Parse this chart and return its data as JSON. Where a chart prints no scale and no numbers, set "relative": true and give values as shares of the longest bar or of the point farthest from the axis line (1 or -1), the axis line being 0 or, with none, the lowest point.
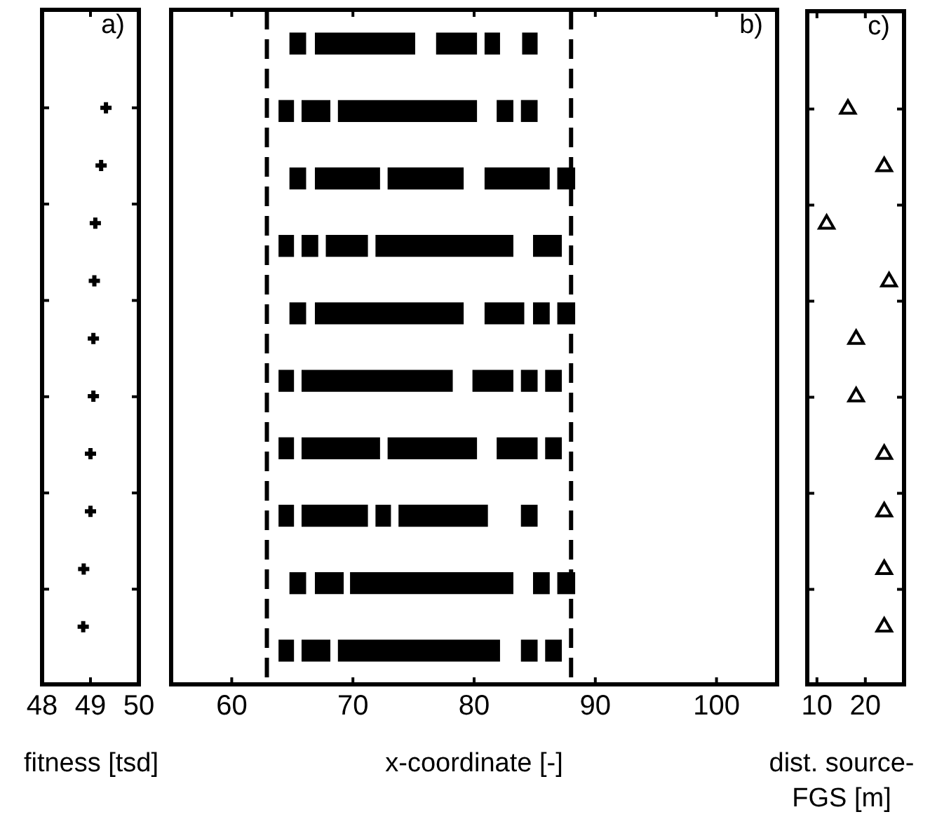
{
  "chart_data": [
    {
      "type": "scatter",
      "xlabel": "fitness [tsd]",
      "annotations": [
        "a)"
      ],
      "x": [
        49.32,
        49.22,
        49.1,
        49.08,
        49.06,
        49.06,
        49.0,
        49.0,
        48.86,
        48.85
      ],
      "values": [
        1,
        0.9,
        0.8,
        0.7,
        0.6,
        0.5,
        0.4,
        0.3,
        0.2,
        0.1
      ],
      "relative": true,
      "color": "#000000",
      "marker": "cross",
      "xlim": [
        48,
        50
      ],
      "xticks": [
        48,
        49,
        50
      ],
      "grid": false,
      "legend": false
    },
    {
      "type": "bar",
      "orientation": "horizontal",
      "xlabel": "x-coordinate [-]",
      "annotations": [
        "b)"
      ],
      "categories": [
        null,
        null,
        null,
        null,
        null,
        null,
        null,
        null,
        null,
        null
      ],
      "series": [
        {
          "color": "#000000",
          "base": [
            64.8,
            63.9,
            64.8,
            63.9,
            64.8,
            63.9,
            63.9,
            63.9,
            64.8,
            63.9
          ],
          "values": [
            1.3,
            1.2,
            1.3,
            1.2,
            1.3,
            1.2,
            1.2,
            1.2,
            1.3,
            1.2
          ]
        },
        {
          "color": "#000000",
          "base": [
            66.9,
            65.8,
            66.9,
            65.8,
            66.9,
            65.8,
            65.8,
            65.8,
            66.9,
            65.8
          ],
          "values": [
            8.2,
            2.3,
            5.3,
            1.3,
            12.2,
            12.4,
            6.4,
            5.4,
            2.3,
            2.3
          ]
        },
        {
          "color": "#000000",
          "base": [
            76.9,
            68.8,
            72.9,
            67.8,
            80.9,
            79.9,
            72.9,
            71.9,
            69.8,
            68.8
          ],
          "values": [
            3.3,
            11.4,
            6.2,
            3.4,
            3.2,
            3.3,
            7.3,
            1.2,
            13.4,
            13.3
          ]
        },
        {
          "color": "#000000",
          "base": [
            80.9,
            81.9,
            80.9,
            71.9,
            84.9,
            83.9,
            81.9,
            73.8,
            84.9,
            83.9
          ],
          "values": [
            1.2,
            1.3,
            5.3,
            11.3,
            1.3,
            1.3,
            3.3,
            7.3,
            1.3,
            1.3
          ]
        },
        {
          "color": "#000000",
          "base": [
            84.0,
            83.9,
            86.9,
            84.9,
            86.9,
            85.9,
            85.9,
            83.9,
            86.9,
            85.9
          ],
          "values": [
            1.2,
            1.3,
            1.4,
            2.3,
            1.4,
            1.3,
            1.3,
            1.3,
            1.4,
            1.3
          ]
        }
      ],
      "ref_lines": [
        {
          "axis": "x",
          "value": 62.9,
          "color": "#000000",
          "line_style": "dashed"
        },
        {
          "axis": "x",
          "value": 88.0,
          "color": "#000000",
          "line_style": "dashed"
        }
      ],
      "xlim": [
        55,
        105
      ],
      "xticks": [
        60,
        70,
        80,
        90,
        100
      ],
      "grid": false,
      "legend": false
    },
    {
      "type": "scatter",
      "xlabel": "dist. source-FGS [m]",
      "annotations": [
        "c)"
      ],
      "x": [
        16.4,
        23.9,
        12.0,
        24.9,
        18.1,
        18.1,
        23.9,
        23.9,
        23.9,
        23.9
      ],
      "values": [
        1,
        0.9,
        0.8,
        0.7,
        0.6,
        0.5,
        0.4,
        0.3,
        0.2,
        0.1
      ],
      "relative": true,
      "color": "#000000",
      "marker": "triangle",
      "xlim": [
        8,
        28
      ],
      "xticks": [
        10,
        20
      ],
      "grid": false,
      "legend": false
    }
  ]
}
